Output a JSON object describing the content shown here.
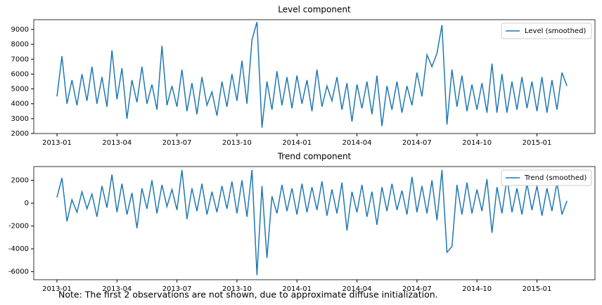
{
  "chart_data": [
    {
      "type": "line",
      "title": "Level component",
      "x": [
        0,
        0.25,
        0.5,
        0.75,
        1,
        1.25,
        1.5,
        1.75,
        2,
        2.25,
        2.5,
        2.75,
        3,
        3.25,
        3.5,
        3.75,
        4,
        4.25,
        4.5,
        4.75,
        5,
        5.25,
        5.5,
        5.75,
        6,
        6.25,
        6.5,
        6.75,
        7,
        7.25,
        7.5,
        7.75,
        8,
        8.25,
        8.5,
        8.75,
        9,
        9.25,
        9.5,
        9.75,
        10,
        10.25,
        10.5,
        10.75,
        11,
        11.25,
        11.5,
        11.75,
        12,
        12.25,
        12.5,
        12.75,
        13,
        13.25,
        13.5,
        13.75,
        14,
        14.25,
        14.5,
        14.75,
        15,
        15.25,
        15.5,
        15.75,
        16,
        16.25,
        16.5,
        16.75,
        17,
        17.25,
        17.5,
        17.75,
        18,
        18.25,
        18.5,
        18.75,
        19,
        19.25,
        19.5,
        19.75,
        20,
        20.25,
        20.5,
        20.75,
        21,
        21.25,
        21.5,
        21.75,
        22,
        22.25,
        22.5,
        22.75,
        23,
        23.25,
        23.5,
        23.75,
        24,
        24.25,
        24.5,
        24.75,
        25,
        25.25,
        25.5
      ],
      "series": [
        {
          "name": "Level (smoothed)",
          "color": "#1f77b4",
          "values": [
            4500,
            7200,
            4000,
            5600,
            3900,
            6000,
            4200,
            6500,
            4000,
            5800,
            3800,
            7600,
            4300,
            6400,
            3000,
            5600,
            4100,
            6500,
            4000,
            5300,
            3600,
            7900,
            3900,
            5200,
            3800,
            6300,
            3500,
            5400,
            3300,
            5800,
            3900,
            4800,
            3200,
            5500,
            3800,
            6000,
            4200,
            6900,
            4000,
            8300,
            9500,
            2400,
            5500,
            3600,
            6200,
            3900,
            5800,
            3700,
            5900,
            4000,
            5600,
            3500,
            6300,
            3800,
            5200,
            4200,
            5800,
            3600,
            5400,
            2800,
            5300,
            3700,
            5500,
            3300,
            5900,
            2500,
            5200,
            3600,
            5500,
            3400,
            5200,
            3900,
            6100,
            4500,
            7300,
            6500,
            7400,
            9300,
            2600,
            6300,
            3800,
            5900,
            3500,
            5300,
            3600,
            5400,
            3400,
            6700,
            3400,
            6000,
            3400,
            5500,
            3600,
            5800,
            3700,
            5500,
            3500,
            5800,
            3400,
            5600,
            3600,
            6100,
            5200
          ]
        }
      ],
      "xlim": [
        -1.16,
        26.9
      ],
      "xticks": [
        {
          "value": 0,
          "label": "2013-01"
        },
        {
          "value": 3,
          "label": "2013-04"
        },
        {
          "value": 6,
          "label": "2013-07"
        },
        {
          "value": 9,
          "label": "2013-10"
        },
        {
          "value": 12,
          "label": "2014-01"
        },
        {
          "value": 15,
          "label": "2014-04"
        },
        {
          "value": 18,
          "label": "2014-07"
        },
        {
          "value": 21,
          "label": "2014-10"
        },
        {
          "value": 24,
          "label": "2015-01"
        }
      ],
      "ylim": [
        2000,
        9660
      ],
      "yticks": [
        2000,
        3000,
        4000,
        5000,
        6000,
        7000,
        8000,
        9000
      ],
      "legend": "upper right"
    },
    {
      "type": "line",
      "title": "Trend component",
      "x": [
        0,
        0.25,
        0.5,
        0.75,
        1,
        1.25,
        1.5,
        1.75,
        2,
        2.25,
        2.5,
        2.75,
        3,
        3.25,
        3.5,
        3.75,
        4,
        4.25,
        4.5,
        4.75,
        5,
        5.25,
        5.5,
        5.75,
        6,
        6.25,
        6.5,
        6.75,
        7,
        7.25,
        7.5,
        7.75,
        8,
        8.25,
        8.5,
        8.75,
        9,
        9.25,
        9.5,
        9.75,
        10,
        10.25,
        10.5,
        10.75,
        11,
        11.25,
        11.5,
        11.75,
        12,
        12.25,
        12.5,
        12.75,
        13,
        13.25,
        13.5,
        13.75,
        14,
        14.25,
        14.5,
        14.75,
        15,
        15.25,
        15.5,
        15.75,
        16,
        16.25,
        16.5,
        16.75,
        17,
        17.25,
        17.5,
        17.75,
        18,
        18.25,
        18.5,
        18.75,
        19,
        19.25,
        19.5,
        19.75,
        20,
        20.25,
        20.5,
        20.75,
        21,
        21.25,
        21.5,
        21.75,
        22,
        22.25,
        22.5,
        22.75,
        23,
        23.25,
        23.5,
        23.75,
        24,
        24.25,
        24.5,
        24.75,
        25,
        25.25,
        25.5
      ],
      "series": [
        {
          "name": "Trend (smoothed)",
          "color": "#1f77b4",
          "values": [
            500,
            2200,
            -1600,
            300,
            -800,
            1000,
            -500,
            800,
            -1200,
            1500,
            -400,
            2500,
            -800,
            1700,
            -1000,
            900,
            -2200,
            1300,
            -500,
            2000,
            -900,
            1600,
            -300,
            1200,
            -600,
            2900,
            -1400,
            1300,
            -700,
            1700,
            -1000,
            1000,
            -800,
            1500,
            -500,
            1900,
            -900,
            2000,
            -1200,
            2900,
            -6300,
            1500,
            -4800,
            600,
            -900,
            1600,
            -700,
            1300,
            -1000,
            1700,
            -800,
            1400,
            -600,
            1900,
            -1100,
            1200,
            -900,
            1800,
            -2400,
            1000,
            -800,
            1600,
            -1200,
            1000,
            -1900,
            1400,
            -700,
            1700,
            -600,
            1100,
            -1000,
            2300,
            -800,
            1500,
            -900,
            2000,
            -1500,
            2900,
            -4300,
            -3800,
            1600,
            -1000,
            1800,
            -900,
            1200,
            -700,
            2100,
            -2600,
            1400,
            -900,
            2200,
            -800,
            1300,
            -1000,
            1700,
            -600,
            1500,
            -1100,
            1300,
            -700,
            1800,
            -1000,
            200
          ]
        }
      ],
      "xlim": [
        -1.16,
        26.9
      ],
      "xticks": [
        {
          "value": 0,
          "label": "2013-01"
        },
        {
          "value": 3,
          "label": "2013-04"
        },
        {
          "value": 6,
          "label": "2013-07"
        },
        {
          "value": 9,
          "label": "2013-10"
        },
        {
          "value": 12,
          "label": "2014-01"
        },
        {
          "value": 15,
          "label": "2014-04"
        },
        {
          "value": 18,
          "label": "2014-07"
        },
        {
          "value": 21,
          "label": "2014-10"
        },
        {
          "value": 24,
          "label": "2015-01"
        }
      ],
      "ylim": [
        -6700,
        3200
      ],
      "yticks": [
        -6000,
        -4000,
        -2000,
        0,
        2000
      ],
      "legend": "upper right"
    }
  ],
  "note": "Note: The first 2 observations are not shown, due to approximate diffuse initialization."
}
